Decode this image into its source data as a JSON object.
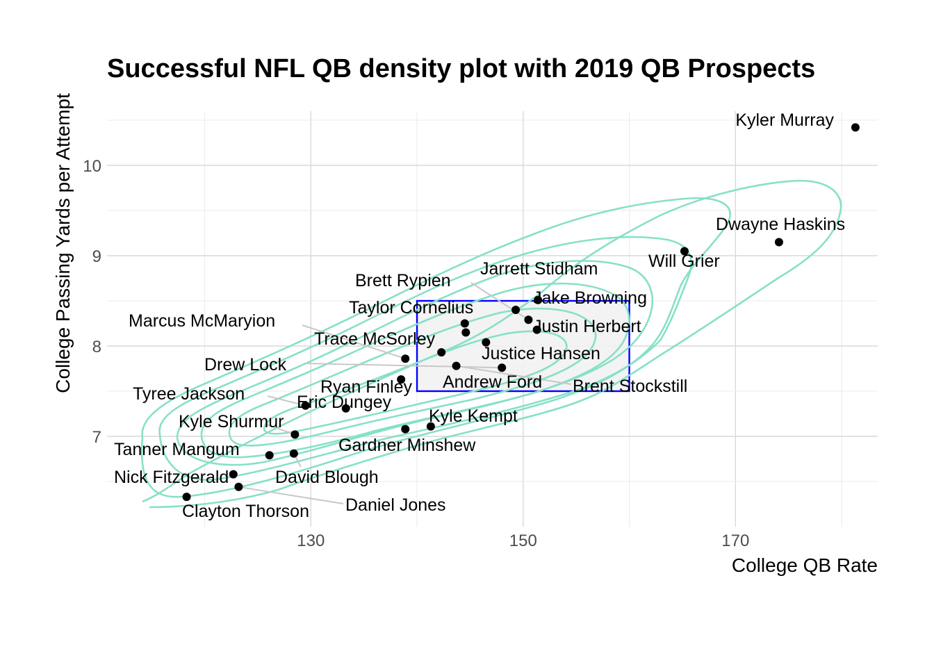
{
  "chart_data": {
    "type": "scatter",
    "title": "Successful NFL QB density plot with 2019 QB Prospects",
    "xlabel": "College QB Rate",
    "ylabel": "College Passing Yards per Attempt",
    "xlim": [
      110.8,
      183.4
    ],
    "ylim": [
      6.0,
      10.6
    ],
    "x_ticks": [
      130,
      150,
      170
    ],
    "y_ticks": [
      7,
      8,
      9,
      10
    ],
    "grid": true,
    "highlight_box": {
      "x": [
        140,
        160
      ],
      "y": [
        7.5,
        8.5
      ],
      "stroke": "#0000ff",
      "fill": "#f2f2f2"
    },
    "contour_color": "#86e0c8",
    "point_color": "#000000",
    "points": [
      {
        "name": "Kyler Murray",
        "x": 181.3,
        "y": 10.42
      },
      {
        "name": "Dwayne Haskins",
        "x": 174.1,
        "y": 9.15
      },
      {
        "name": "Will Grier",
        "x": 165.2,
        "y": 9.05
      },
      {
        "name": "Jake Browning",
        "x": 151.4,
        "y": 8.51
      },
      {
        "name": "Jarrett Stidham",
        "x": 149.3,
        "y": 8.4
      },
      {
        "name": "Brett Rypien",
        "x": 150.5,
        "y": 8.29
      },
      {
        "name": "Justin Herbert",
        "x": 151.3,
        "y": 8.18
      },
      {
        "name": "Taylor Cornelius",
        "x": 144.5,
        "y": 8.25
      },
      {
        "name": "Trace McSorley",
        "x": 144.6,
        "y": 8.15
      },
      {
        "name": "Andrew Ford",
        "x": 146.5,
        "y": 8.04
      },
      {
        "name": "Justice Hansen",
        "x": 142.3,
        "y": 7.93
      },
      {
        "name": "Brent Stockstill",
        "x": 143.7,
        "y": 7.78
      },
      {
        "name": "Drew Lock",
        "x": 148.0,
        "y": 7.76
      },
      {
        "name": "Marcus McMaryion",
        "x": 138.9,
        "y": 7.86
      },
      {
        "name": "Ryan Finley",
        "x": 138.5,
        "y": 7.63
      },
      {
        "name": "Eric Dungey",
        "x": 133.3,
        "y": 7.31
      },
      {
        "name": "Tyree Jackson",
        "x": 129.5,
        "y": 7.34
      },
      {
        "name": "Kyle Kempt",
        "x": 141.3,
        "y": 7.11
      },
      {
        "name": "Gardner Minshew",
        "x": 138.9,
        "y": 7.08
      },
      {
        "name": "Kyle Shurmur",
        "x": 128.5,
        "y": 7.02
      },
      {
        "name": "David Blough",
        "x": 128.4,
        "y": 6.81
      },
      {
        "name": "Tanner Mangum",
        "x": 126.1,
        "y": 6.79
      },
      {
        "name": "Nick Fitzgerald",
        "x": 122.7,
        "y": 6.58
      },
      {
        "name": "Daniel Jones",
        "x": 123.2,
        "y": 6.44
      },
      {
        "name": "Clayton Thorson",
        "x": 118.3,
        "y": 6.33
      }
    ]
  }
}
